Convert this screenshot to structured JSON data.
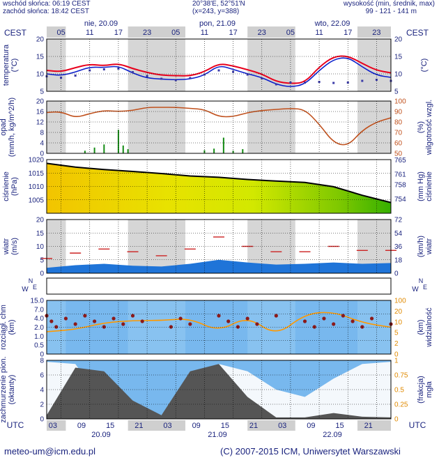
{
  "header": {
    "sunrise": "wschód słońca: 06:19 CEST",
    "sunset": "zachód słońca: 18:42 CEST",
    "coords": "20°38'E, 52°51'N",
    "grid": "(x=243, y=388)",
    "altitude_label": "wysokość (min, średnik, max)",
    "altitude_values": "99 - 121 - 141 m"
  },
  "timeline": {
    "tz_left": "CEST",
    "tz_right": "CEST",
    "utc_left": "UTC",
    "utc_right": "UTC",
    "days_top": [
      "nie, 20.09",
      "pon, 21.09",
      "wto, 22.09"
    ],
    "hours_top": [
      "05",
      "11",
      "17",
      "23",
      "05",
      "11",
      "17",
      "23",
      "05",
      "11",
      "17",
      "23"
    ],
    "hours_bottom": [
      "03",
      "09",
      "15",
      "21",
      "03",
      "09",
      "15",
      "21",
      "03",
      "09",
      "15",
      "21"
    ],
    "days_bottom": [
      "20.09",
      "21.09",
      "22.09"
    ]
  },
  "footer": {
    "email": "meteo-um@icm.edu.pl",
    "copyright": "(C) 2007-2015 ICM, Uniwersytet Warszawski"
  },
  "colors": {
    "axis_text": "#1a237e",
    "temp_red": "#e8001c",
    "temp_blue": "#0b1fcc",
    "humidity": "#c0501c",
    "pressure_line": "#000000",
    "wind_red": "#cc2222",
    "night_shade": "#d6d6d6",
    "vis_orange": "#ff9900",
    "sky_blue": "#78b8ee"
  },
  "chart_data": [
    {
      "type": "line",
      "panel": "temperature",
      "ylabel_left": "temperatura\n(°C)",
      "ylabel_right": "(°C)",
      "ylim": [
        5,
        20
      ],
      "ticks": [
        5,
        10,
        15,
        20
      ],
      "x_hours": [
        0,
        3,
        6,
        9,
        12,
        15,
        18,
        21,
        24,
        27,
        30,
        33,
        36,
        39,
        42,
        45,
        48,
        51,
        54,
        57,
        60,
        63,
        66,
        69,
        72
      ],
      "series": [
        {
          "role": "2m temperature (red)",
          "values": [
            11.0,
            10.6,
            11.8,
            12.8,
            12.3,
            13.0,
            11.5,
            10.4,
            9.6,
            9.5,
            9.4,
            10.6,
            13.0,
            12.3,
            11.2,
            10.0,
            7.8,
            7.2,
            7.5,
            12.0,
            15.0,
            15.2,
            13.0,
            11.0,
            10.3
          ]
        },
        {
          "role": "ground temperature (blue)",
          "values": [
            10.0,
            9.5,
            10.5,
            12.0,
            11.8,
            12.3,
            10.2,
            8.8,
            8.5,
            8.3,
            8.5,
            9.6,
            12.5,
            11.3,
            10.0,
            9.0,
            7.0,
            6.2,
            7.0,
            11.0,
            14.2,
            14.8,
            12.0,
            9.6,
            9.0
          ]
        },
        {
          "role": "dew point (dotted)",
          "values": [
            9.3,
            8.9,
            9.5,
            11.0,
            11.3,
            11.5,
            10.5,
            9.4,
            8.6,
            8.2,
            8.8,
            9.8,
            11.0,
            10.6,
            9.8,
            8.7,
            7.0,
            7.5,
            7.5,
            7.7,
            7.4,
            7.5,
            8.0,
            8.3,
            8.0
          ]
        }
      ]
    },
    {
      "type": "line",
      "panel": "precipitation and relative humidity",
      "ylabel_left": "opad\n(mm/h, kg/m^2/h)",
      "ylabel_right": "(%)\nwilgotność wzgl.",
      "ylim_left": [
        0,
        20
      ],
      "ticks_left": [
        0,
        4,
        8,
        12,
        16,
        20
      ],
      "ylim_right": [
        50,
        100
      ],
      "ticks_right": [
        50,
        60,
        70,
        80,
        90,
        100
      ],
      "x_hours": [
        0,
        3,
        6,
        9,
        12,
        15,
        18,
        21,
        24,
        27,
        30,
        33,
        36,
        39,
        42,
        45,
        48,
        51,
        54,
        57,
        60,
        63,
        66,
        69,
        72
      ],
      "humidity": [
        89,
        90,
        84,
        88,
        91,
        90,
        91,
        94,
        94,
        94,
        93,
        92,
        85,
        85,
        89,
        91,
        92,
        93,
        92,
        78,
        60,
        57,
        72,
        80,
        84
      ],
      "precip_bars_hour": [
        8,
        10,
        12,
        15,
        16,
        17,
        33,
        35,
        37,
        39,
        41
      ],
      "precip_bars_value": [
        1.0,
        2.2,
        3.4,
        9.0,
        3.0,
        1.6,
        1.2,
        1.8,
        6.0,
        1.0,
        1.6
      ]
    },
    {
      "type": "area",
      "panel": "pressure",
      "ylabel_left": "ciśnienie\n(hPa)",
      "ylabel_right": "(mm Hg)\nciśnienie",
      "ylim": [
        1000,
        1020
      ],
      "ticks_left": [
        1005,
        1010,
        1015,
        1020
      ],
      "ticks_right": [
        "754",
        "758",
        "761",
        "765"
      ],
      "x_hours": [
        0,
        6,
        12,
        18,
        24,
        30,
        36,
        42,
        48,
        54,
        60,
        66,
        72
      ],
      "values": [
        1018.6,
        1017.2,
        1016.3,
        1015.6,
        1014.8,
        1013.9,
        1013.4,
        1012.6,
        1012.0,
        1011.5,
        1009.9,
        1006.7,
        1004.0
      ]
    },
    {
      "type": "line",
      "panel": "wind",
      "ylabel_left": "wiatr\n(m/s)",
      "ylabel_right": "(km/h)\nwiatr",
      "ylim": [
        0,
        20
      ],
      "ticks_left": [
        0,
        5,
        10,
        15,
        20
      ],
      "ticks_right": [
        "0",
        "18",
        "36",
        "54",
        "72"
      ],
      "x_hours": [
        0,
        6,
        12,
        18,
        24,
        30,
        36,
        42,
        48,
        54,
        60,
        66,
        72
      ],
      "mean_speed": [
        2.0,
        3.0,
        3.5,
        2.8,
        2.5,
        3.5,
        5.0,
        4.0,
        3.2,
        3.5,
        4.0,
        3.5,
        3.8
      ],
      "gusts": [
        5.5,
        7.5,
        9.0,
        8.0,
        6.5,
        9.0,
        13.5,
        10.0,
        8.0,
        8.0,
        10.0,
        8.5,
        8.5
      ]
    },
    {
      "type": "line",
      "panel": "cloud base and visibility",
      "ylabel_left": "rozciągł. chm\n(km)",
      "ylabel_right": "(km)\nwidzialność",
      "ticks_left": [
        "0",
        "0.5",
        "1.0",
        "2.0",
        "4.0",
        "7.0",
        "15.0"
      ],
      "ticks_right": [
        0,
        2,
        5,
        10,
        20,
        100
      ],
      "x_hours": [
        0,
        6,
        12,
        18,
        24,
        30,
        36,
        42,
        48,
        54,
        60,
        66,
        72
      ],
      "visibility": [
        10,
        11,
        14,
        15,
        15,
        16,
        10,
        17,
        8,
        18,
        19,
        14,
        12
      ]
    },
    {
      "type": "area",
      "panel": "cloudiness and fog",
      "ylabel_left": "zachmurzenie pion.\n(oktanty)",
      "ylabel_right": "(frakcja)\nmgła",
      "ylim": [
        0,
        8
      ],
      "ticks_left": [
        0,
        2,
        4,
        6,
        8
      ],
      "ticks_right": [
        "0",
        "0.25",
        "0.5",
        "0.75",
        "1"
      ],
      "x_hours": [
        0,
        6,
        12,
        18,
        24,
        30,
        36,
        42,
        48,
        54,
        60,
        66,
        72
      ],
      "high_cloud": [
        7.8,
        7.5,
        2.0,
        0.5,
        0.5,
        6.0,
        7.5,
        6.5,
        4.0,
        3.0,
        5.5,
        7.5,
        7.8
      ],
      "low_cloud": [
        0.5,
        7.0,
        6.5,
        2.5,
        0.5,
        6.5,
        7.5,
        3.0,
        0.2,
        0.2,
        0.8,
        0.3,
        0.2
      ]
    }
  ]
}
